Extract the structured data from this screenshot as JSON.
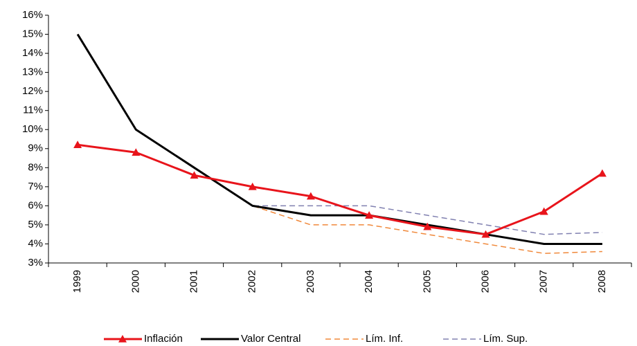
{
  "chart_data": {
    "type": "line",
    "categories": [
      "1999",
      "2000",
      "2001",
      "2002",
      "2003",
      "2004",
      "2005",
      "2006",
      "2007",
      "2008"
    ],
    "ylim": [
      3,
      16
    ],
    "yticks": [
      {
        "value": 3,
        "label": "3%"
      },
      {
        "value": 4,
        "label": "4%"
      },
      {
        "value": 5,
        "label": "5%"
      },
      {
        "value": 6,
        "label": "6%"
      },
      {
        "value": 7,
        "label": "7%"
      },
      {
        "value": 8,
        "label": "8%"
      },
      {
        "value": 9,
        "label": "9%"
      },
      {
        "value": 10,
        "label": "10%"
      },
      {
        "value": 11,
        "label": "11%"
      },
      {
        "value": 12,
        "label": "12%"
      },
      {
        "value": 13,
        "label": "13%"
      },
      {
        "value": 14,
        "label": "14%"
      },
      {
        "value": 15,
        "label": "15%"
      },
      {
        "value": 16,
        "label": "16%"
      }
    ],
    "grid": false,
    "legend": "bottom",
    "series": [
      {
        "name": "Inflación",
        "color": "#e8141b",
        "marker": "triangle",
        "dashed": false,
        "values": [
          9.2,
          8.8,
          7.6,
          7.0,
          6.5,
          5.5,
          4.9,
          4.5,
          5.7,
          7.7
        ]
      },
      {
        "name": "Valor Central",
        "color": "#000000",
        "marker": "none",
        "dashed": false,
        "values": [
          15,
          10,
          8,
          6,
          5.5,
          5.5,
          5,
          4.5,
          4,
          4
        ]
      },
      {
        "name": "Lím. Inf.",
        "color": "#f0883a",
        "marker": "none",
        "dashed": true,
        "values": [
          15,
          10,
          8,
          6,
          5,
          5,
          4.5,
          4,
          3.5,
          3.6
        ]
      },
      {
        "name": "Lím. Sup.",
        "color": "#8080b0",
        "marker": "none",
        "dashed": true,
        "values": [
          15,
          10,
          8,
          6,
          6,
          6,
          5.5,
          5,
          4.5,
          4.6
        ]
      }
    ]
  }
}
